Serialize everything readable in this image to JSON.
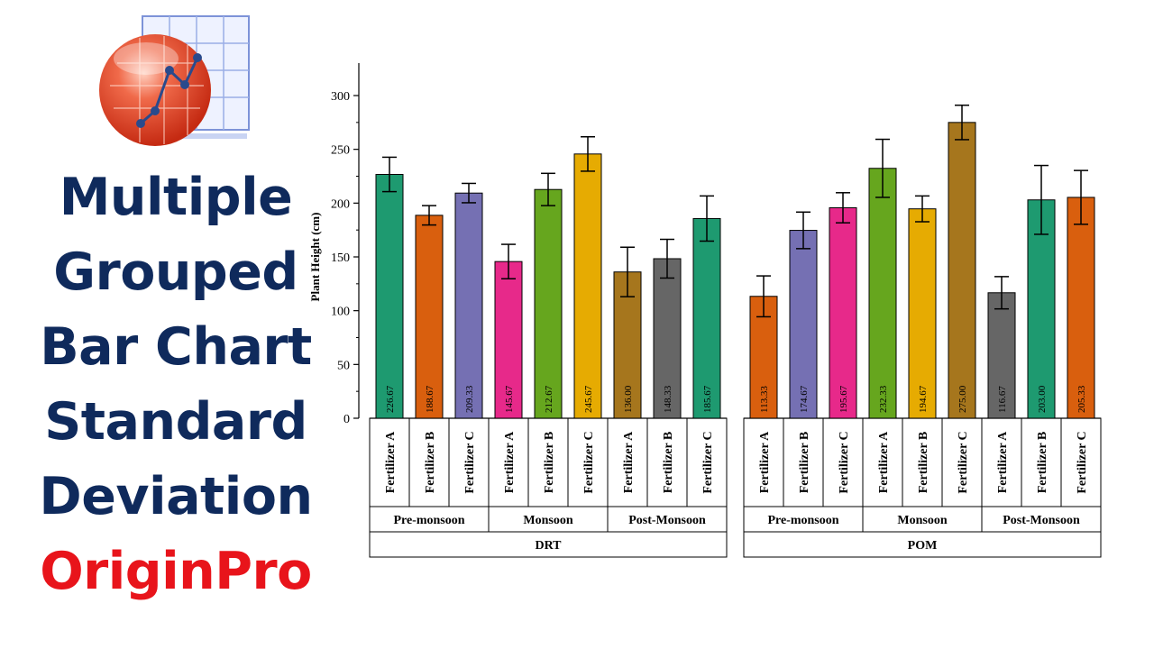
{
  "title_lines": [
    "Multiple",
    "Grouped",
    "Bar Chart",
    "Standard",
    "Deviation"
  ],
  "brand": "OriginPro",
  "logo_icon": "origin-chart-logo-icon",
  "chart_data": {
    "type": "bar",
    "ylabel": "Plant Height (cm)",
    "xlabel": "",
    "ylim": [
      0,
      320
    ],
    "yticks": [
      0,
      50,
      100,
      150,
      200,
      250,
      300
    ],
    "error_bars": "standard deviation",
    "groups": [
      {
        "name": "DRT",
        "subgroups": [
          {
            "name": "Pre-monsoon",
            "bars": [
              {
                "label": "Fertilizer A",
                "value": 226.67,
                "value_label": "226.67",
                "sd": 16,
                "color": "#1e9a70"
              },
              {
                "label": "Fertilizer B",
                "value": 188.67,
                "value_label": "188.67",
                "sd": 9,
                "color": "#d95f0e"
              },
              {
                "label": "Fertilizer C",
                "value": 209.33,
                "value_label": "209.33",
                "sd": 9,
                "color": "#7570b3"
              }
            ]
          },
          {
            "name": "Monsoon",
            "bars": [
              {
                "label": "Fertilizer A",
                "value": 145.67,
                "value_label": "145.67",
                "sd": 16,
                "color": "#e7298a"
              },
              {
                "label": "Fertilizer B",
                "value": 212.67,
                "value_label": "212.67",
                "sd": 15,
                "color": "#66a61e"
              },
              {
                "label": "Fertilizer C",
                "value": 245.67,
                "value_label": "245.67",
                "sd": 16,
                "color": "#e6ab02"
              }
            ]
          },
          {
            "name": "Post-Monsoon",
            "bars": [
              {
                "label": "Fertilizer A",
                "value": 136.0,
                "value_label": "136.00",
                "sd": 23,
                "color": "#a6761d"
              },
              {
                "label": "Fertilizer B",
                "value": 148.33,
                "value_label": "148.33",
                "sd": 18,
                "color": "#666666"
              },
              {
                "label": "Fertilizer C",
                "value": 185.67,
                "value_label": "185.67",
                "sd": 21,
                "color": "#1e9a70"
              }
            ]
          }
        ]
      },
      {
        "name": "POM",
        "subgroups": [
          {
            "name": "Pre-monsoon",
            "bars": [
              {
                "label": "Fertilizer A",
                "value": 113.33,
                "value_label": "113.33",
                "sd": 19,
                "color": "#d95f0e"
              },
              {
                "label": "Fertilizer B",
                "value": 174.67,
                "value_label": "174.67",
                "sd": 17,
                "color": "#7570b3"
              },
              {
                "label": "Fertilizer C",
                "value": 195.67,
                "value_label": "195.67",
                "sd": 14,
                "color": "#e7298a"
              }
            ]
          },
          {
            "name": "Monsoon",
            "bars": [
              {
                "label": "Fertilizer A",
                "value": 232.33,
                "value_label": "232.33",
                "sd": 27,
                "color": "#66a61e"
              },
              {
                "label": "Fertilizer B",
                "value": 194.67,
                "value_label": "194.67",
                "sd": 12,
                "color": "#e6ab02"
              },
              {
                "label": "Fertilizer C",
                "value": 275.0,
                "value_label": "275.00",
                "sd": 16,
                "color": "#a6761d"
              }
            ]
          },
          {
            "name": "Post-Monsoon",
            "bars": [
              {
                "label": "Fertilizer A",
                "value": 116.67,
                "value_label": "116.67",
                "sd": 15,
                "color": "#666666"
              },
              {
                "label": "Fertilizer B",
                "value": 203.0,
                "value_label": "203.00",
                "sd": 32,
                "color": "#1e9a70"
              },
              {
                "label": "Fertilizer C",
                "value": 205.33,
                "value_label": "205.33",
                "sd": 25,
                "color": "#d95f0e"
              }
            ]
          }
        ]
      }
    ]
  }
}
